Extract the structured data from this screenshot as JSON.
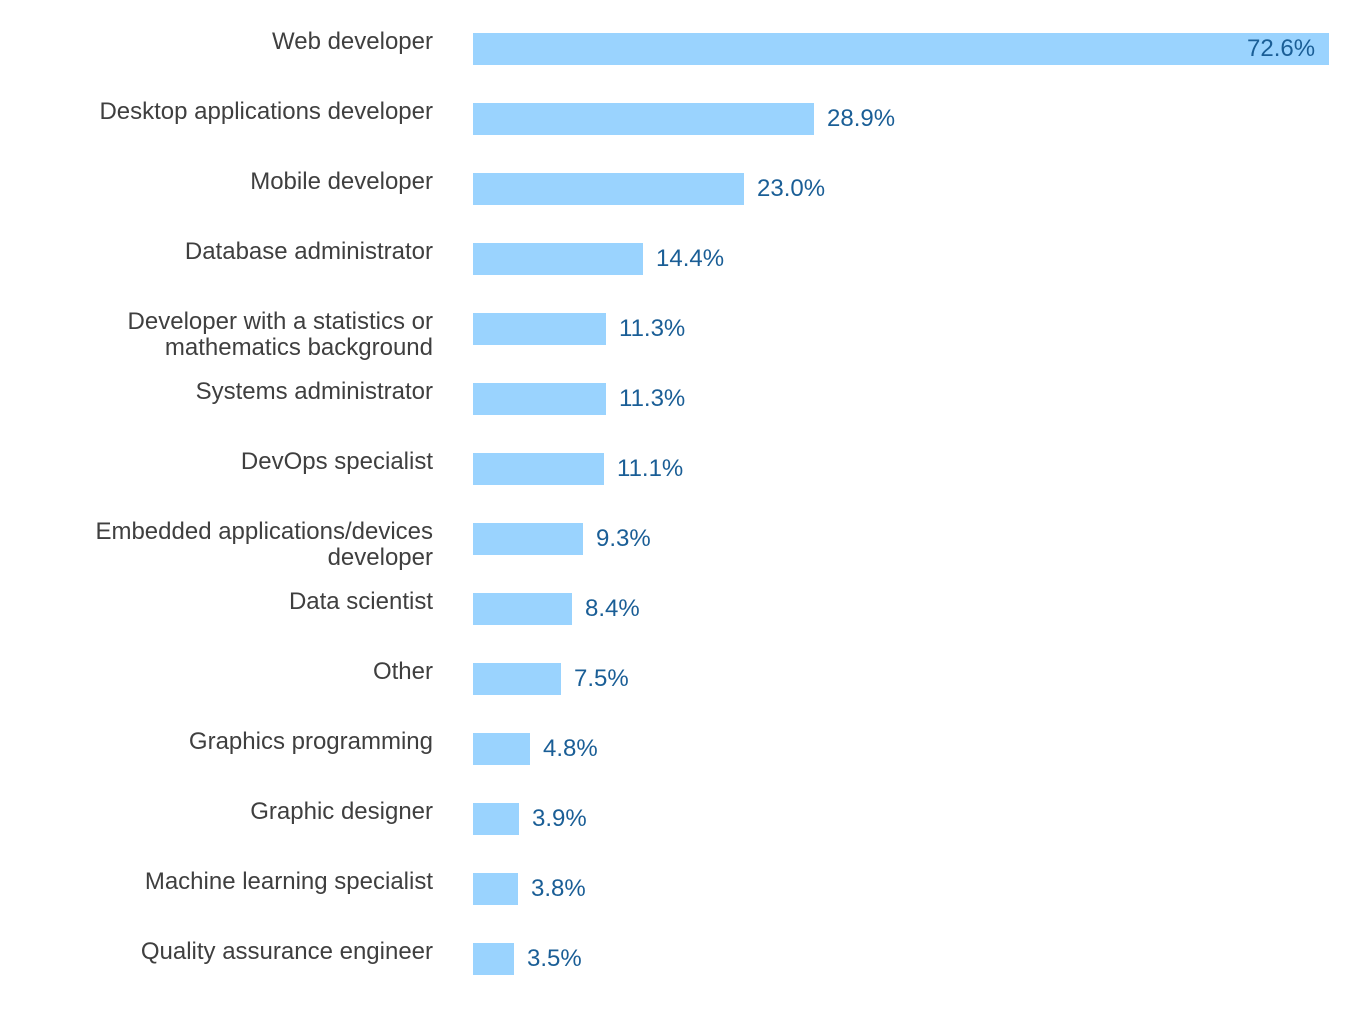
{
  "chart_data": {
    "type": "bar",
    "orientation": "horizontal",
    "categories": [
      "Web developer",
      "Desktop applications developer",
      "Mobile developer",
      "Database administrator",
      "Developer with a statistics or mathematics background",
      "Systems administrator",
      "DevOps specialist",
      "Embedded applications/devices developer",
      "Data scientist",
      "Other",
      "Graphics programming",
      "Graphic designer",
      "Machine learning specialist",
      "Quality assurance engineer"
    ],
    "values": [
      72.6,
      28.9,
      23.0,
      14.4,
      11.3,
      11.3,
      11.1,
      9.3,
      8.4,
      7.5,
      4.8,
      3.9,
      3.8,
      3.5
    ],
    "value_labels": [
      "72.6%",
      "28.9%",
      "23.0%",
      "14.4%",
      "11.3%",
      "11.3%",
      "11.1%",
      "9.3%",
      "8.4%",
      "7.5%",
      "4.8%",
      "3.9%",
      "3.8%",
      "3.5%"
    ],
    "unit": "%",
    "title": "",
    "xlabel": "",
    "ylabel": "",
    "xlim": [
      0,
      72.6
    ],
    "grid": false,
    "legend": "none",
    "colors": {
      "bar": "#9ad3fe",
      "value_label": "#1a5e96",
      "category_label": "#3f3f3f"
    }
  }
}
